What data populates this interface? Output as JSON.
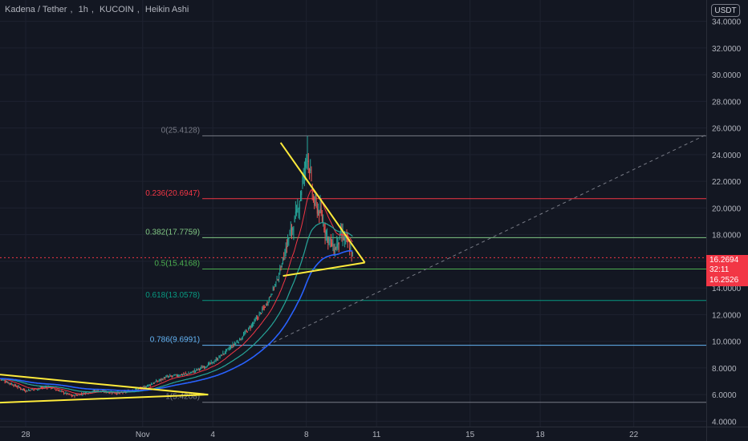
{
  "title": {
    "symbol": "Kadena / Tether",
    "interval": "1h",
    "exchange": "KUCOIN",
    "style": "Heikin Ashi"
  },
  "currency": "USDT",
  "price_badge": {
    "price": "16.2694",
    "countdown": "32:11",
    "second": "16.2526"
  },
  "chart_data": {
    "type": "candlestick",
    "y_axis": {
      "min": 3.6,
      "max": 35.6,
      "ticks": [
        "4.0000",
        "6.0000",
        "8.0000",
        "10.0000",
        "12.0000",
        "14.0000",
        "16.0000",
        "18.0000",
        "20.0000",
        "22.0000",
        "24.0000",
        "26.0000",
        "28.0000",
        "30.0000",
        "32.0000",
        "34.0000"
      ]
    },
    "x_axis": {
      "ticks": [
        {
          "label": "28",
          "day": -4
        },
        {
          "label": "Nov",
          "day": 1
        },
        {
          "label": "4",
          "day": 4
        },
        {
          "label": "8",
          "day": 8
        },
        {
          "label": "11",
          "day": 11
        },
        {
          "label": "15",
          "day": 15
        },
        {
          "label": "18",
          "day": 18
        },
        {
          "label": "22",
          "day": 22
        }
      ],
      "range": [
        -5.1,
        25.1
      ]
    },
    "fib_levels": [
      {
        "label": "0(25.4128)",
        "value": 25.4128,
        "color": "#787b86"
      },
      {
        "label": "0.236(20.6947)",
        "value": 20.6947,
        "color": "#f23645"
      },
      {
        "label": "0.382(17.7759)",
        "value": 17.7759,
        "color": "#81c784"
      },
      {
        "label": "0.5(15.4168)",
        "value": 15.4168,
        "color": "#4caf50"
      },
      {
        "label": "0.618(13.0578)",
        "value": 13.0578,
        "color": "#089981"
      },
      {
        "label": "0.786(9.6991)",
        "value": 9.6991,
        "color": "#64b5f6"
      },
      {
        "label": "1(5.4208)",
        "value": 5.4208,
        "color": "#787b86"
      }
    ],
    "current_price": 16.2694,
    "colors": {
      "up": "#26a69a",
      "down": "#ef5350",
      "trendline": "#ffeb3b",
      "ema_fast": "#f23645",
      "ema_mid": "#26a69a",
      "ema_slow": "#2962ff"
    }
  }
}
